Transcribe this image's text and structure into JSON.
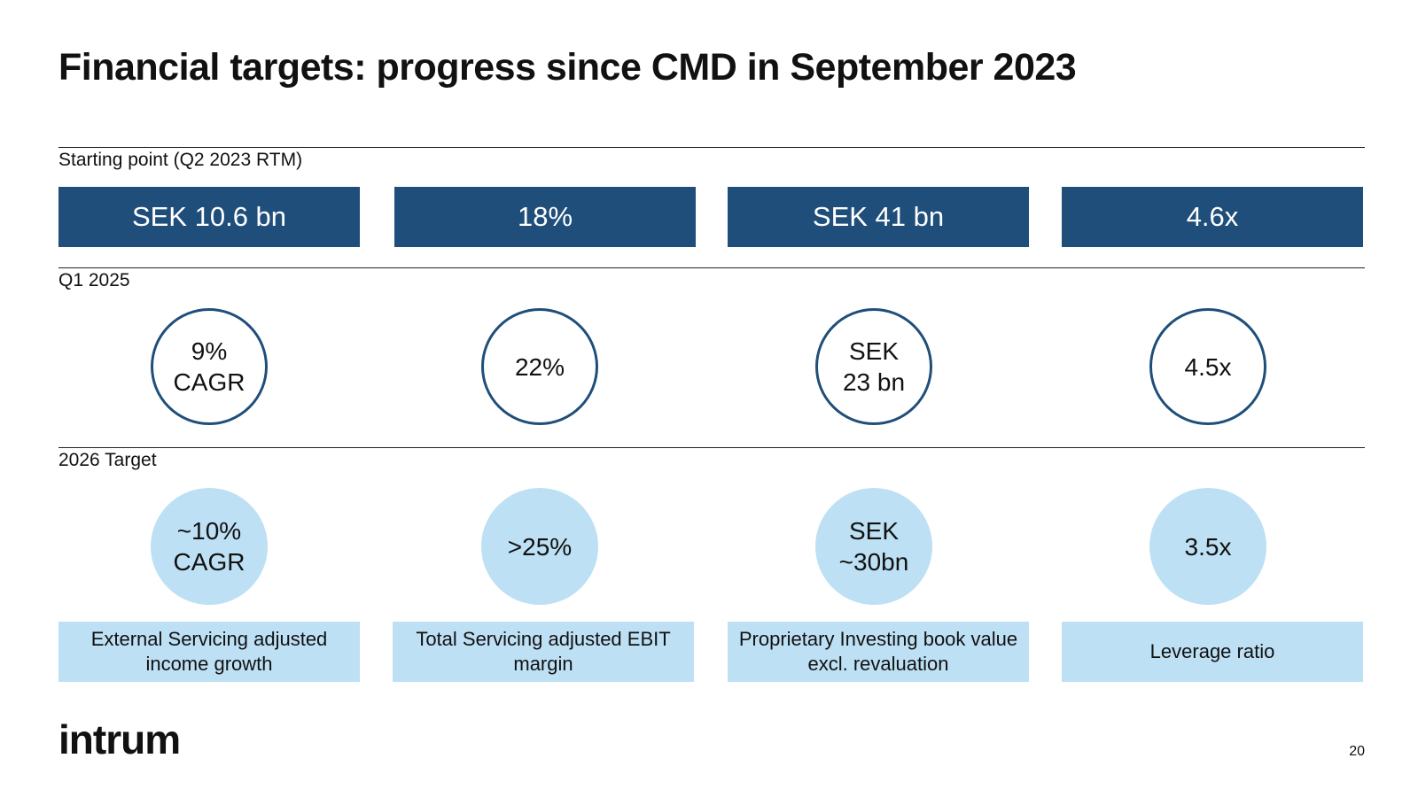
{
  "title": "Financial targets: progress since CMD in September 2023",
  "rows": {
    "starting_point": "Starting point (Q2 2023 RTM)",
    "current": "Q1 2025",
    "target": "2026 Target"
  },
  "metrics": [
    {
      "start": "SEK 10.6 bn",
      "current": [
        "9%",
        "CAGR"
      ],
      "target": [
        "~10%",
        "CAGR"
      ],
      "label": "External Servicing adjusted income growth"
    },
    {
      "start": "18%",
      "current": [
        "22%"
      ],
      "target": [
        ">25%"
      ],
      "label": "Total Servicing adjusted EBIT margin"
    },
    {
      "start": "SEK 41 bn",
      "current": [
        "SEK",
        "23 bn"
      ],
      "target": [
        "SEK",
        "~30bn"
      ],
      "label": "Proprietary Investing book value excl. revaluation"
    },
    {
      "start": "4.6x",
      "current": [
        "4.5x"
      ],
      "target": [
        "3.5x"
      ],
      "label": "Leverage ratio"
    }
  ],
  "footer": {
    "logo": "intrum",
    "page_number": "20"
  },
  "colors": {
    "dark_blue": "#1f4e7a",
    "light_blue": "#bde0f4"
  }
}
